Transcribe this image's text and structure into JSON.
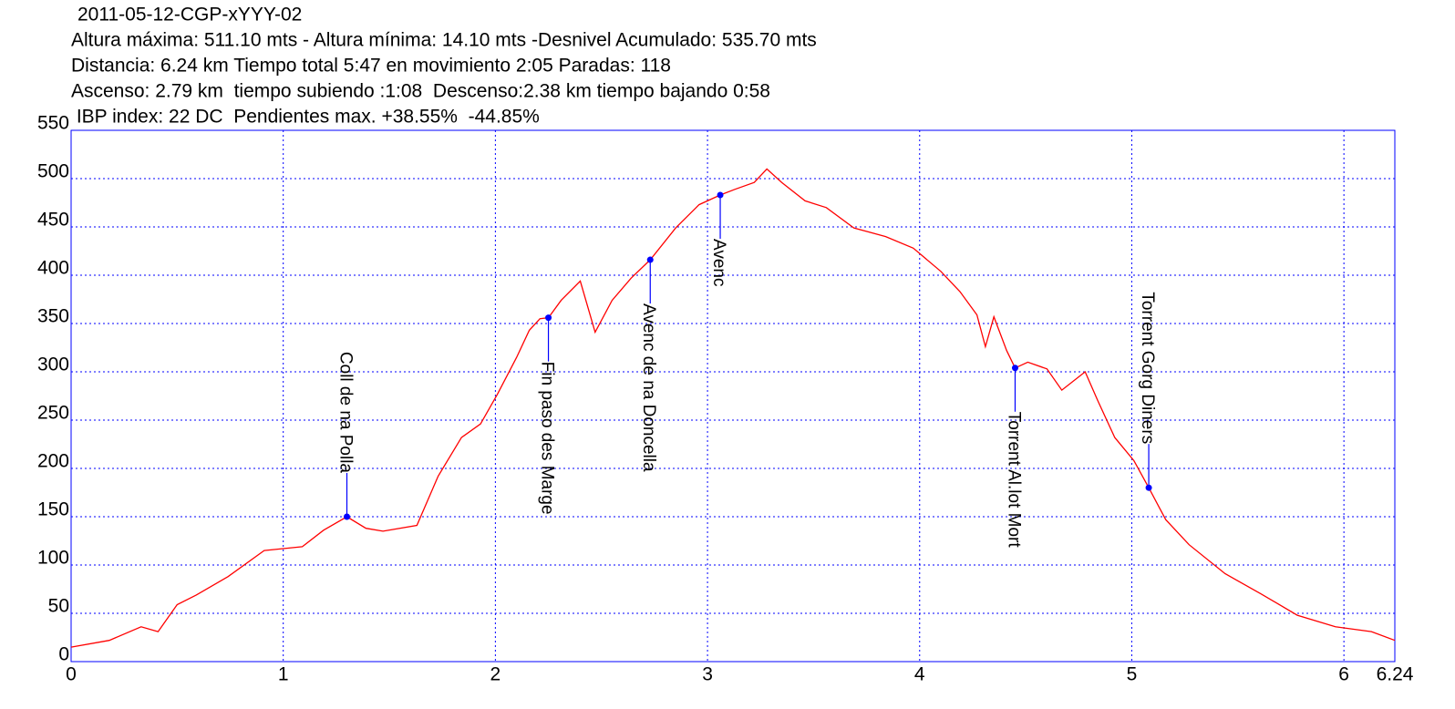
{
  "chart_data": {
    "type": "line",
    "title": "2011-05-12-CGP-xYYY-02",
    "subtitle": [
      "Altura máxima: 511.10 mts - Altura mínima: 14.10 mts -Desnivel Acumulado: 535.70 mts",
      "Distancia: 6.24 km  Tiempo total 5:47  en movimiento 2:05 Paradas: 118",
      "Ascenso: 2.79 km  tiempo subiendo :1:08  Descenso:2.38 km tiempo bajando 0:58",
      " IBP index: 22 DC  Pendientes max. +38.55%  -44.85%"
    ],
    "x": [
      0,
      0.18,
      0.33,
      0.41,
      0.5,
      0.59,
      0.74,
      0.91,
      1.0,
      1.09,
      1.19,
      1.3,
      1.39,
      1.47,
      1.63,
      1.73,
      1.84,
      1.93,
      2.01,
      2.1,
      2.16,
      2.21,
      2.25,
      2.31,
      2.4,
      2.47,
      2.55,
      2.64,
      2.73,
      2.85,
      2.96,
      3.06,
      3.13,
      3.22,
      3.28,
      3.35,
      3.46,
      3.56,
      3.69,
      3.84,
      3.97,
      4.1,
      4.19,
      4.27,
      4.31,
      4.35,
      4.41,
      4.45,
      4.51,
      4.6,
      4.67,
      4.78,
      4.84,
      4.92,
      5.01,
      5.08,
      5.16,
      5.27,
      5.44,
      5.61,
      5.78,
      5.96,
      6.13,
      6.24
    ],
    "series": [
      {
        "color": "#ff0000",
        "values": [
          15,
          22,
          36,
          31,
          59,
          69,
          88,
          115,
          117,
          119,
          136,
          150,
          138,
          135,
          141,
          192,
          232,
          246,
          277,
          315,
          343,
          355,
          356,
          374,
          394,
          341,
          374,
          397,
          416,
          449,
          473,
          483,
          489,
          496,
          510,
          496,
          477,
          470,
          449,
          440,
          428,
          404,
          383,
          359,
          326,
          357,
          322,
          304,
          310,
          303,
          281,
          300,
          270,
          232,
          208,
          180,
          147,
          121,
          91,
          70,
          48,
          36,
          31,
          22
        ]
      }
    ],
    "waypoints": [
      {
        "name": "Coll de na Polla",
        "x": 1.3,
        "y": 150
      },
      {
        "name": "Fin paso des Marge",
        "x": 2.25,
        "y": 356
      },
      {
        "name": "Avenc de na Doncella",
        "x": 2.73,
        "y": 416
      },
      {
        "name": "Avenc",
        "x": 3.06,
        "y": 483
      },
      {
        "name": "Torrent Al.lot Mort",
        "x": 4.45,
        "y": 304
      },
      {
        "name": "Torrent Gorg Diners",
        "x": 5.08,
        "y": 180
      }
    ],
    "marker_color": "#0000ff",
    "xlim": [
      0,
      6.24
    ],
    "xticks": [
      0,
      1,
      2,
      3,
      4,
      5,
      6,
      6.24
    ],
    "ylim": [
      0,
      550
    ],
    "yticks": [
      0,
      50,
      100,
      150,
      200,
      250,
      300,
      350,
      400,
      450,
      500,
      550
    ],
    "grid": true
  }
}
